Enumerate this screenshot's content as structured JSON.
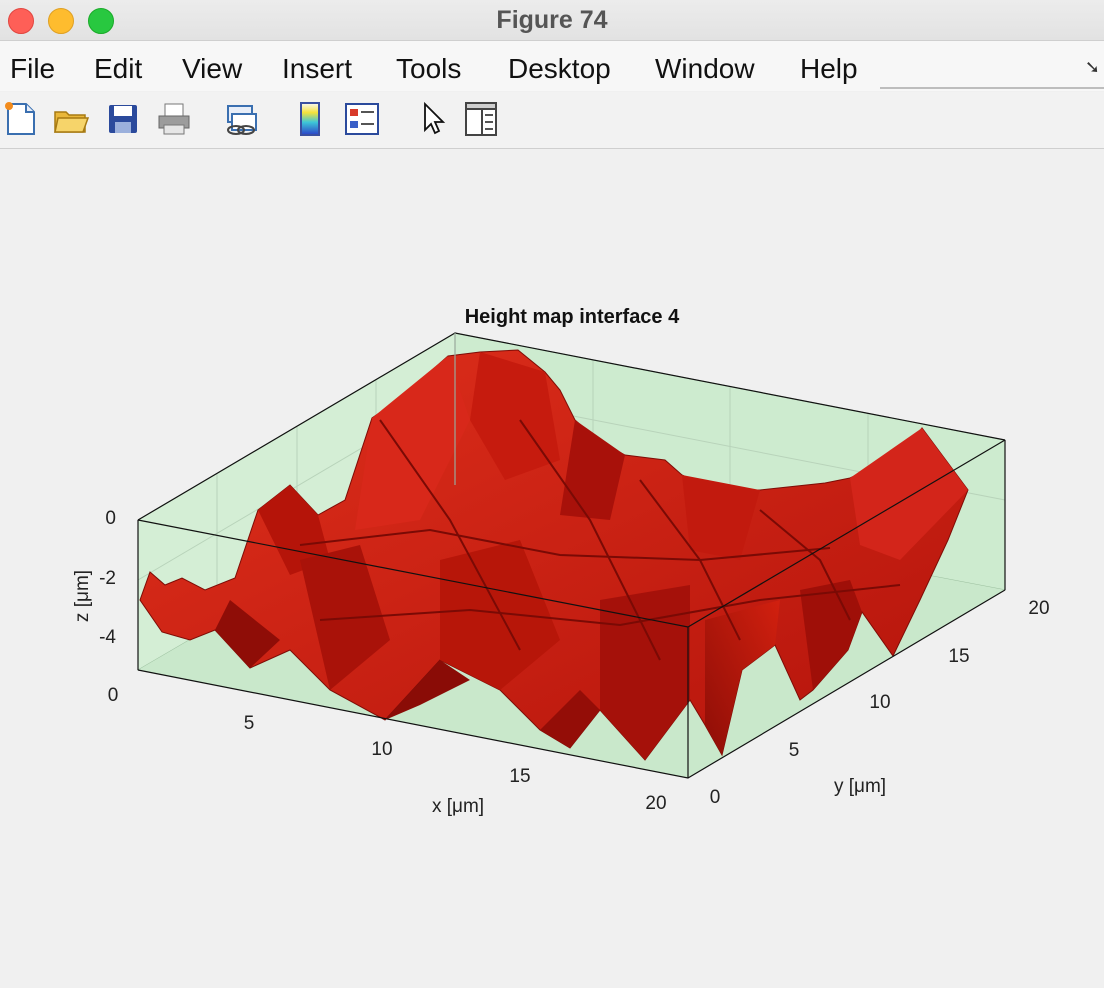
{
  "window": {
    "title": "Figure 74"
  },
  "menu": [
    "File",
    "Edit",
    "View",
    "Insert",
    "Tools",
    "Desktop",
    "Window",
    "Help"
  ],
  "toolbar_icons": [
    "new-figure-icon",
    "open-file-icon",
    "save-icon",
    "print-icon",
    "link-icon",
    "colorbar-icon",
    "legend-icon",
    "pointer-icon",
    "property-inspector-icon"
  ],
  "colors": {
    "surface": "#c8190f",
    "box_fill": "#cdebcf",
    "background": "#f0f0f0"
  },
  "chart_data": {
    "type": "surface",
    "title": "Height map interface 4",
    "xlabel": "x [μm]",
    "ylabel": "y [μm]",
    "zlabel": "z [μm]",
    "xlim": [
      0,
      20
    ],
    "ylim": [
      0,
      20
    ],
    "zlim": [
      -5,
      0
    ],
    "x_ticks": [
      "0",
      "5",
      "10",
      "15",
      "20"
    ],
    "y_ticks": [
      "0",
      "5",
      "10",
      "15",
      "20"
    ],
    "z_ticks": [
      "0",
      "-2",
      "-4"
    ],
    "grid": true
  }
}
